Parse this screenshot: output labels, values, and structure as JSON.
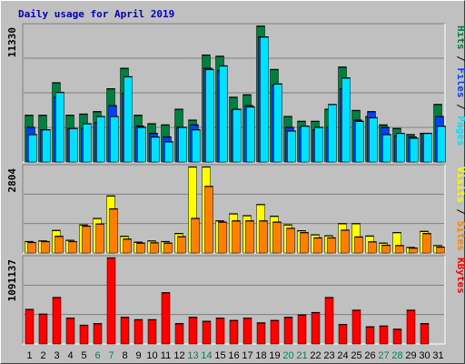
{
  "title": "Daily usage for April 2019",
  "colors": {
    "background": "#c0c0c0",
    "title": "#0000c0",
    "hits": "#008040",
    "files": "#0040ff",
    "pages": "#00e0ff",
    "visits": "#ffff00",
    "sites": "#ff8000",
    "kbytes": "#ff0000",
    "weekend_label": "#00805c",
    "weekday_label": "#000000"
  },
  "chart_data": [
    {
      "type": "bar",
      "name": "hits-files-pages",
      "max_label": "11330",
      "ylim": [
        0,
        11330
      ],
      "legend": [
        "Pages",
        "Files",
        "Hits"
      ],
      "categories": [
        "1",
        "2",
        "3",
        "4",
        "5",
        "6",
        "7",
        "8",
        "9",
        "10",
        "11",
        "12",
        "13",
        "14",
        "15",
        "16",
        "17",
        "18",
        "19",
        "20",
        "21",
        "22",
        "23",
        "24",
        "25",
        "26",
        "27",
        "28",
        "29",
        "30",
        "31"
      ],
      "series": [
        {
          "name": "Hits",
          "values": [
            3900,
            3900,
            6600,
            3900,
            4000,
            4200,
            6100,
            7800,
            3900,
            3200,
            3100,
            4400,
            3500,
            8900,
            8800,
            5400,
            5600,
            11300,
            7700,
            3800,
            3400,
            3400,
            4400,
            7900,
            4300,
            3800,
            3100,
            2800,
            2300,
            2400,
            4800
          ]
        },
        {
          "name": "Files",
          "values": [
            2900,
            2700,
            5400,
            2800,
            2800,
            3300,
            4700,
            5700,
            3000,
            2400,
            2100,
            2900,
            3100,
            7800,
            7600,
            4300,
            4700,
            10400,
            6400,
            2900,
            2900,
            2700,
            2900,
            6100,
            3500,
            4200,
            2900,
            2200,
            2100,
            2400,
            3800
          ]
        },
        {
          "name": "Pages",
          "values": [
            2300,
            2700,
            5800,
            2800,
            3200,
            3800,
            3800,
            7100,
            2900,
            2100,
            1700,
            2900,
            2700,
            7700,
            8000,
            4400,
            4600,
            10400,
            6500,
            2600,
            3000,
            2900,
            4800,
            7000,
            3400,
            3700,
            2300,
            2400,
            2000,
            2400,
            3000
          ]
        }
      ]
    },
    {
      "type": "bar",
      "name": "visits-sites",
      "max_label": "2804",
      "ylim": [
        0,
        2804
      ],
      "legend": [
        "Sites",
        "Visits"
      ],
      "categories": [
        "1",
        "2",
        "3",
        "4",
        "5",
        "6",
        "7",
        "8",
        "9",
        "10",
        "11",
        "12",
        "13",
        "14",
        "15",
        "16",
        "17",
        "18",
        "19",
        "20",
        "21",
        "22",
        "23",
        "24",
        "25",
        "26",
        "27",
        "28",
        "29",
        "30",
        "31"
      ],
      "series": [
        {
          "name": "Visits",
          "values": [
            380,
            400,
            740,
            420,
            920,
            1130,
            1860,
            550,
            360,
            400,
            380,
            640,
            2800,
            2800,
            1050,
            1280,
            1220,
            1580,
            1200,
            920,
            730,
            600,
            570,
            960,
            960,
            560,
            330,
            670,
            190,
            710,
            250
          ]
        },
        {
          "name": "Sites",
          "values": [
            350,
            380,
            550,
            380,
            880,
            950,
            1440,
            460,
            330,
            340,
            330,
            540,
            1130,
            2170,
            1010,
            1050,
            1050,
            1050,
            1010,
            810,
            670,
            500,
            500,
            750,
            530,
            370,
            260,
            250,
            170,
            640,
            200
          ]
        }
      ]
    },
    {
      "type": "bar",
      "name": "kbytes",
      "max_label": "1091137",
      "ylim": [
        0,
        1091137
      ],
      "legend": [
        "KBytes"
      ],
      "categories": [
        "1",
        "2",
        "3",
        "4",
        "5",
        "6",
        "7",
        "8",
        "9",
        "10",
        "11",
        "12",
        "13",
        "14",
        "15",
        "16",
        "17",
        "18",
        "19",
        "20",
        "21",
        "22",
        "23",
        "24",
        "25",
        "26",
        "27",
        "28",
        "29",
        "30",
        "31"
      ],
      "series": [
        {
          "name": "KBytes",
          "values": [
            440000,
            380000,
            590000,
            330000,
            240000,
            260000,
            1090000,
            340000,
            310000,
            310000,
            650000,
            260000,
            340000,
            290000,
            330000,
            300000,
            330000,
            270000,
            300000,
            340000,
            370000,
            400000,
            590000,
            250000,
            430000,
            220000,
            230000,
            190000,
            430000,
            260000,
            null
          ]
        }
      ]
    }
  ],
  "day_labels": [
    "1",
    "2",
    "3",
    "4",
    "5",
    "6",
    "7",
    "8",
    "9",
    "10",
    "11",
    "12",
    "13",
    "14",
    "15",
    "16",
    "17",
    "18",
    "19",
    "20",
    "21",
    "22",
    "23",
    "24",
    "25",
    "26",
    "27",
    "28",
    "29",
    "30",
    "31"
  ],
  "weekend_days": [
    "6",
    "7",
    "13",
    "14",
    "20",
    "21",
    "27",
    "28"
  ]
}
